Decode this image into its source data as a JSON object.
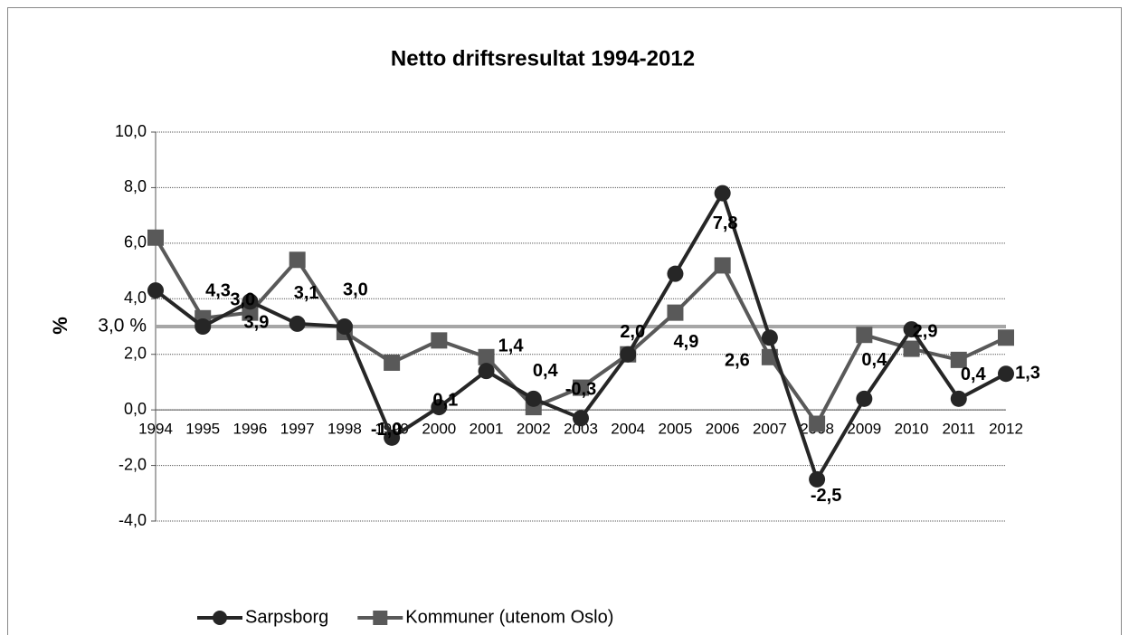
{
  "chart_data": {
    "type": "line",
    "title": "Netto driftsresultat 1994-2012",
    "y_label": "%",
    "categories": [
      "1994",
      "1995",
      "1996",
      "1997",
      "1998",
      "1999",
      "2000",
      "2001",
      "2002",
      "2003",
      "2004",
      "2005",
      "2006",
      "2007",
      "2008",
      "2009",
      "2010",
      "2011",
      "2012"
    ],
    "series": [
      {
        "name": "Sarpsborg",
        "color": "#262626",
        "marker": "circle",
        "values": [
          4.3,
          3.0,
          3.9,
          3.1,
          3.0,
          -1.0,
          0.1,
          1.4,
          0.4,
          -0.3,
          2.0,
          4.9,
          7.8,
          2.6,
          -2.5,
          0.4,
          2.9,
          0.4,
          1.3
        ],
        "value_labels": [
          "4,3",
          "3,0",
          "3,9",
          "3,1",
          "3,0",
          "-1,0",
          "0,1",
          "1,4",
          "0,4",
          "-0,3",
          "2,0",
          "4,9",
          "7,8",
          "2,6",
          "-2,5",
          "0,4",
          "2,9",
          "0,4",
          "1,3"
        ]
      },
      {
        "name": "Kommuner (utenom Oslo)",
        "color": "#595959",
        "marker": "square",
        "values": [
          6.2,
          3.3,
          3.5,
          5.4,
          2.8,
          1.7,
          2.5,
          1.9,
          0.1,
          0.8,
          2.0,
          3.5,
          5.2,
          1.9,
          -0.5,
          2.7,
          2.2,
          1.8,
          2.6
        ]
      }
    ],
    "reference_line": {
      "value": 3.0,
      "label": "3,0 %",
      "color": "#a6a6a6"
    },
    "ylim": [
      -4,
      10
    ],
    "yticks": [
      {
        "value": -4,
        "label": "-4,0"
      },
      {
        "value": -2,
        "label": "-2,0"
      },
      {
        "value": 0,
        "label": "0,0"
      },
      {
        "value": 2,
        "label": "2,0"
      },
      {
        "value": 4,
        "label": "4,0"
      },
      {
        "value": 6,
        "label": "6,0"
      },
      {
        "value": 8,
        "label": "8,0"
      },
      {
        "value": 10,
        "label": "10,0"
      }
    ],
    "grid": true,
    "legend": "bottom"
  }
}
